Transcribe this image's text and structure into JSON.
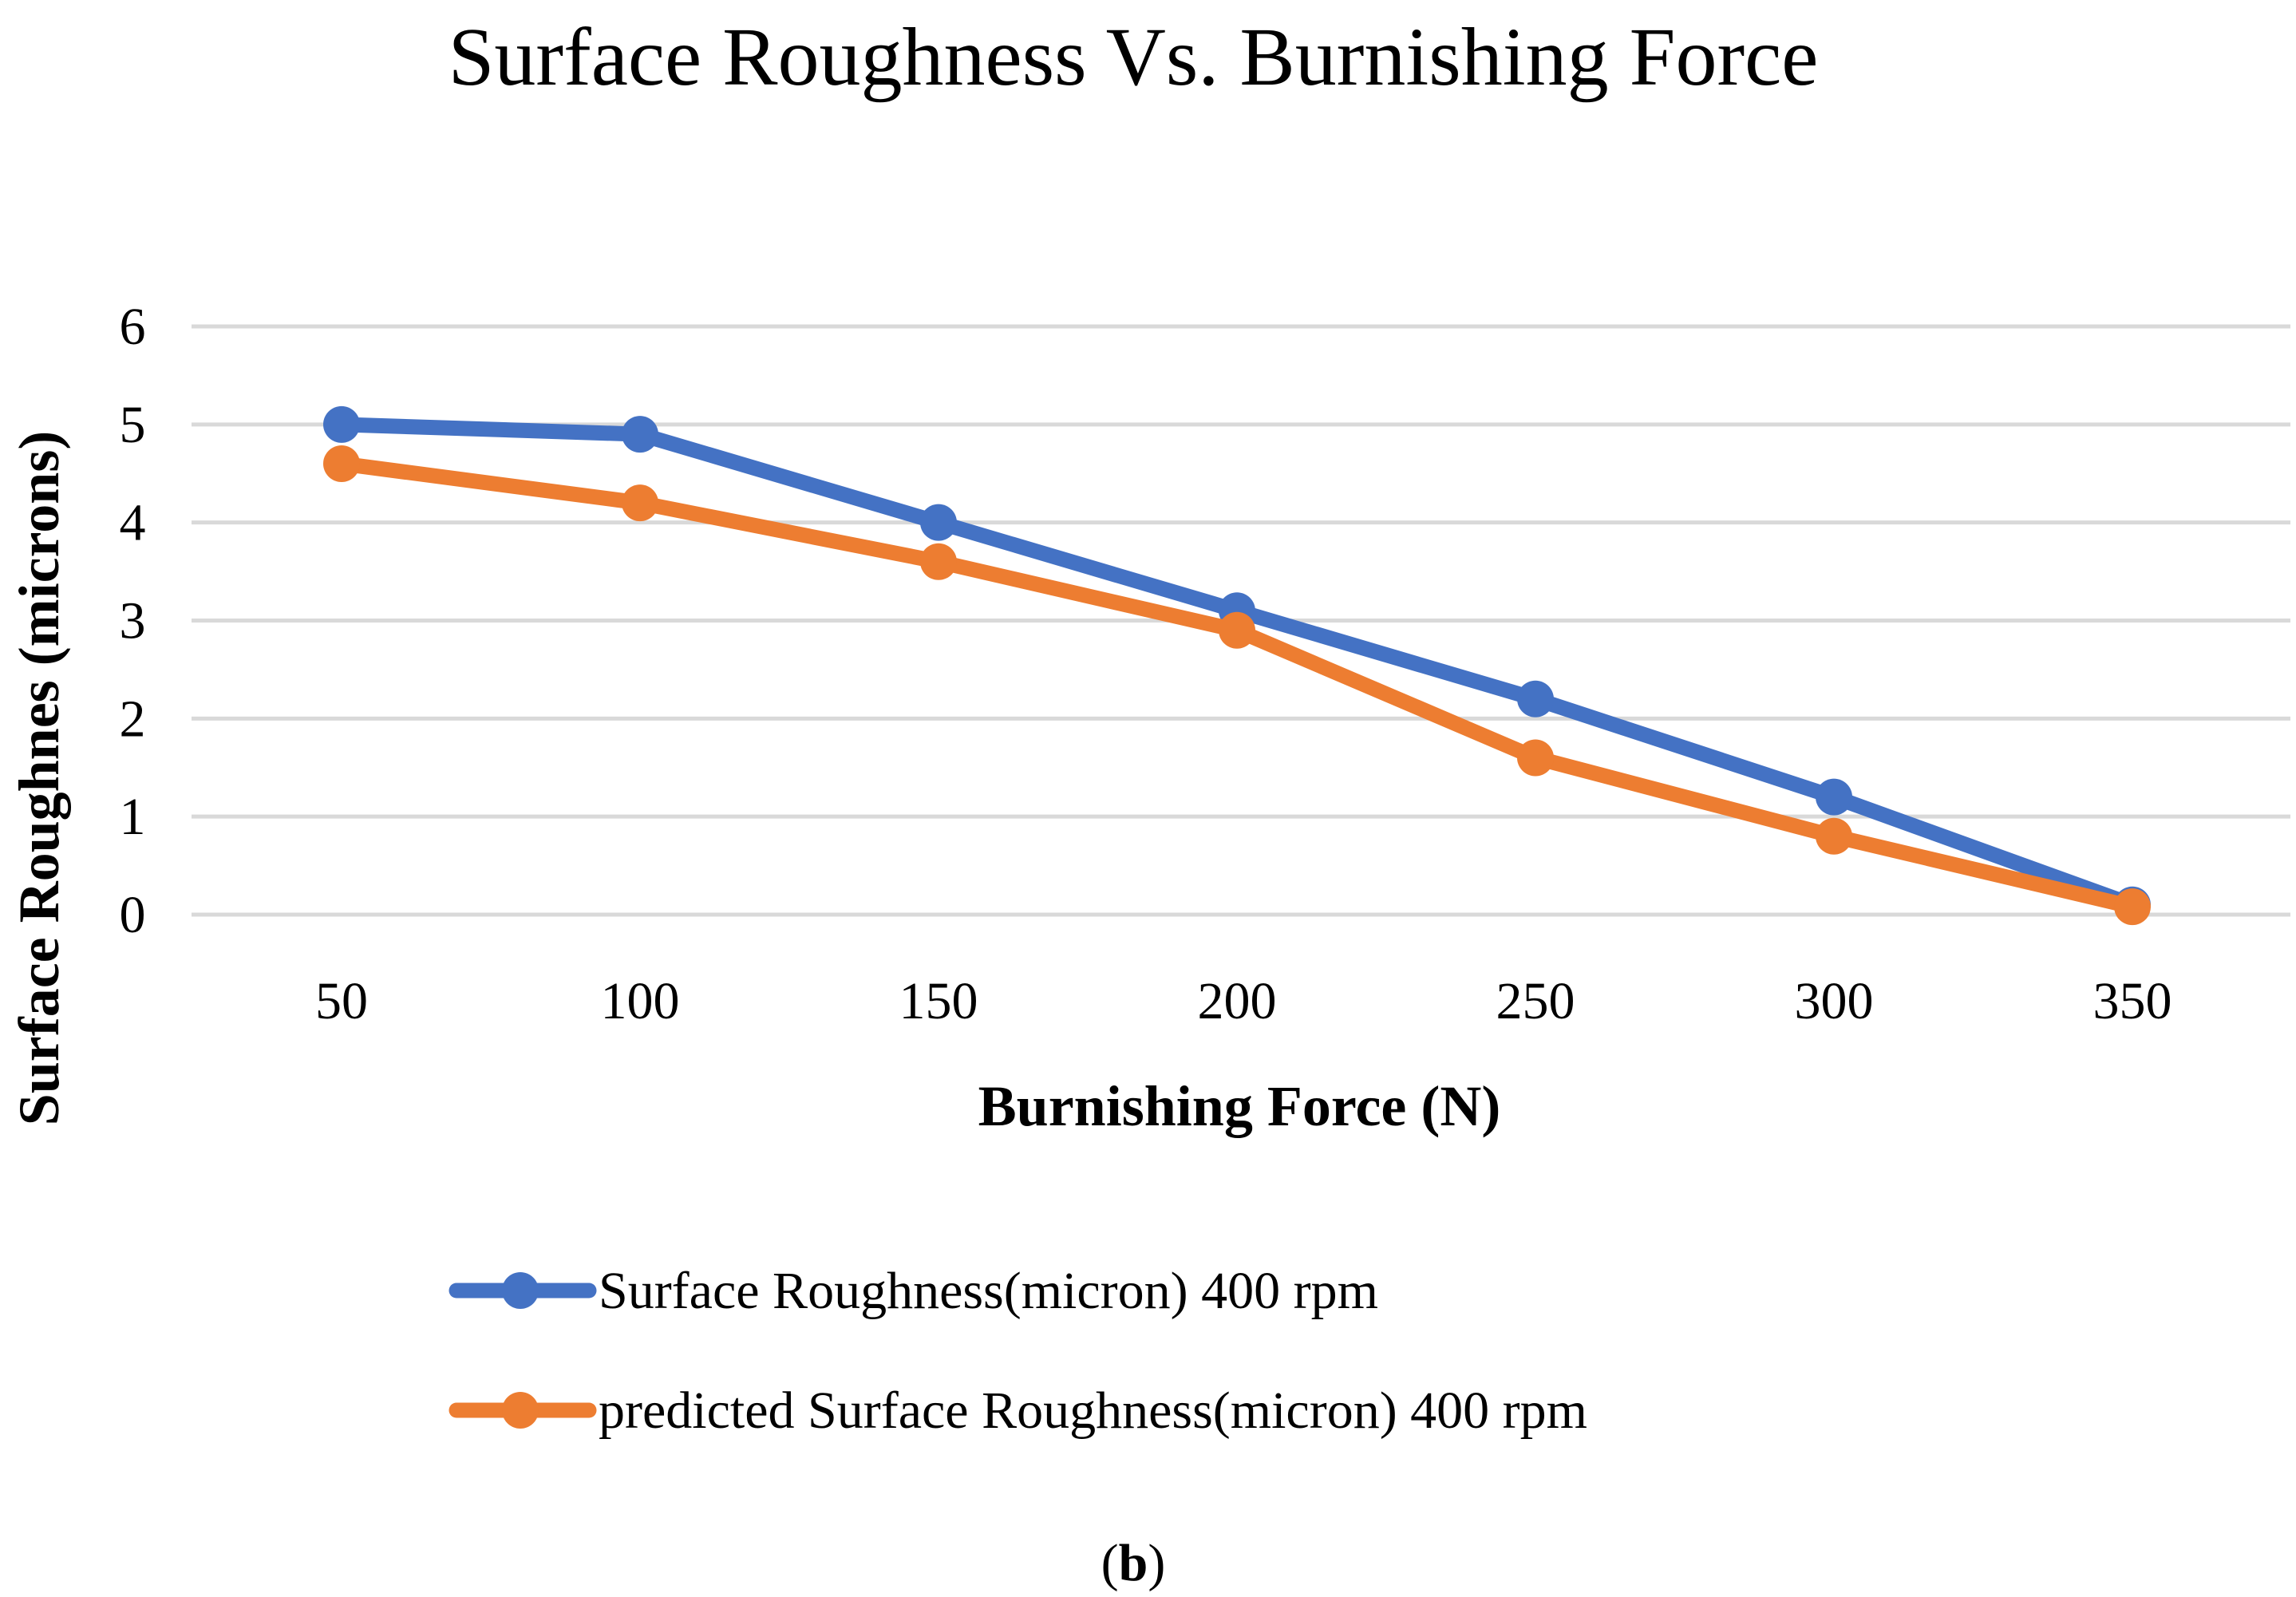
{
  "chart_data": {
    "type": "line",
    "title": "Surface Roughness Vs. Burnishing Force",
    "xlabel": "Burnishing Force (N)",
    "ylabel": "Surface Roughnes (microns)",
    "categories": [
      "50",
      "100",
      "150",
      "200",
      "250",
      "300",
      "350"
    ],
    "x": [
      50,
      100,
      150,
      200,
      250,
      300,
      350
    ],
    "ylim": [
      0,
      6
    ],
    "yticks": [
      "0",
      "1",
      "2",
      "3",
      "4",
      "5",
      "6"
    ],
    "grid": true,
    "legend_position": "bottom",
    "series": [
      {
        "name": "Surface Roughness(micron) 400 rpm",
        "color": "#4472C4",
        "values": [
          5.0,
          4.9,
          4.0,
          3.1,
          2.2,
          1.2,
          0.1
        ]
      },
      {
        "name": "predicted Surface Roughness(micron) 400 rpm",
        "color": "#ED7D31",
        "values": [
          4.6,
          4.2,
          3.6,
          2.9,
          1.6,
          0.8,
          0.08
        ]
      }
    ]
  },
  "caption": {
    "open": "(",
    "letter": "b",
    "close": ")"
  },
  "gridline_color": "#D9D9D9"
}
